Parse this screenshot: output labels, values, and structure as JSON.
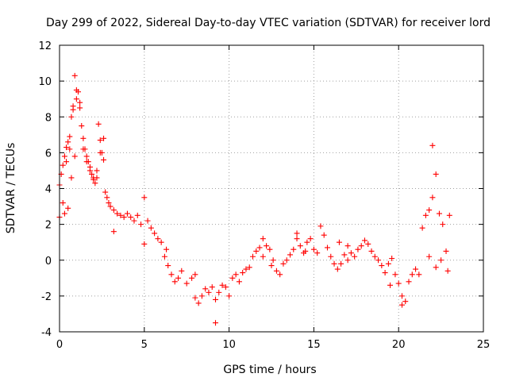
{
  "chart_data": {
    "type": "scatter",
    "title": "Day 299 of 2022, Sidereal Day-to-day VTEC variation (SDTVAR) for receiver lord",
    "xlabel": "GPS time / hours",
    "ylabel": "SDTVAR / TECUs",
    "xlim": [
      0,
      25
    ],
    "ylim": [
      -4,
      12
    ],
    "xticks": [
      0,
      5,
      10,
      15,
      20,
      25
    ],
    "yticks": [
      -4,
      -2,
      0,
      2,
      4,
      6,
      8,
      10,
      12
    ],
    "xtick_labels": [
      "0",
      "5",
      "10",
      "15",
      "20",
      "25"
    ],
    "ytick_labels": [
      "-4",
      "-2",
      "0",
      "2",
      "4",
      "6",
      "8",
      "10",
      "12"
    ],
    "grid": true,
    "marker": "+",
    "color": "#ff0000",
    "series": [
      {
        "name": "SDTVAR",
        "x": [
          0.0,
          0.1,
          0.2,
          0.3,
          0.4,
          0.5,
          0.6,
          0.7,
          0.8,
          0.9,
          1.0,
          1.1,
          1.2,
          1.3,
          1.4,
          1.5,
          1.6,
          1.7,
          1.8,
          1.9,
          2.0,
          2.1,
          2.2,
          2.3,
          2.4,
          2.5,
          2.6,
          2.7,
          2.8,
          2.9,
          3.0,
          3.2,
          3.4,
          3.6,
          3.8,
          4.0,
          4.2,
          4.4,
          4.6,
          4.8,
          5.0,
          5.2,
          5.4,
          5.6,
          5.8,
          6.0,
          6.2,
          6.4,
          6.6,
          6.8,
          7.0,
          7.2,
          7.5,
          7.8,
          8.0,
          8.2,
          8.4,
          8.6,
          8.8,
          9.0,
          9.2,
          9.4,
          9.6,
          9.8,
          10.0,
          10.2,
          10.4,
          10.6,
          10.8,
          11.0,
          11.2,
          11.4,
          11.6,
          11.8,
          12.0,
          12.2,
          12.4,
          12.6,
          12.8,
          13.0,
          13.2,
          13.4,
          13.6,
          13.8,
          14.0,
          14.2,
          14.4,
          14.6,
          14.8,
          15.0,
          15.2,
          15.4,
          15.6,
          15.8,
          16.0,
          16.2,
          16.4,
          16.6,
          16.8,
          17.0,
          17.2,
          17.4,
          17.6,
          17.8,
          18.0,
          18.2,
          18.4,
          18.6,
          18.8,
          19.0,
          19.2,
          19.4,
          19.6,
          19.8,
          20.0,
          20.2,
          20.4,
          20.6,
          20.8,
          21.0,
          21.2,
          21.4,
          21.6,
          21.8,
          22.0,
          22.2,
          22.4,
          22.6,
          22.8,
          23.0,
          0.0,
          0.2,
          0.4,
          0.6,
          0.8,
          1.0,
          1.2,
          1.4,
          1.6,
          1.8,
          2.0,
          2.2,
          2.4,
          2.6,
          0.3,
          0.5,
          0.7,
          0.9,
          3.2,
          5.0,
          6.3,
          8.0,
          9.2,
          12.0,
          12.5,
          14.0,
          14.5,
          16.5,
          17.0,
          19.5,
          20.2,
          21.8,
          22.0,
          22.2,
          22.5,
          22.9
        ],
        "y": [
          4.2,
          4.8,
          5.3,
          5.8,
          6.3,
          6.6,
          6.9,
          8.0,
          8.6,
          10.3,
          9.5,
          9.4,
          8.8,
          7.5,
          6.8,
          6.2,
          5.8,
          5.5,
          5.2,
          4.8,
          4.5,
          4.3,
          4.6,
          7.6,
          6.7,
          6.0,
          5.6,
          3.8,
          3.5,
          3.2,
          3.0,
          2.8,
          2.6,
          2.5,
          2.4,
          2.6,
          2.4,
          2.2,
          2.5,
          2.0,
          3.5,
          2.2,
          1.8,
          1.5,
          1.2,
          1.0,
          0.2,
          -0.3,
          -0.8,
          -1.2,
          -1.0,
          -0.6,
          -1.3,
          -1.0,
          -0.8,
          -2.4,
          -2.0,
          -1.6,
          -1.8,
          -1.5,
          -2.2,
          -1.8,
          -1.4,
          -1.5,
          -2.0,
          -1.0,
          -0.8,
          -1.2,
          -0.7,
          -0.5,
          -0.4,
          0.2,
          0.5,
          0.7,
          1.2,
          0.8,
          0.6,
          0.0,
          -0.6,
          -0.8,
          -0.2,
          0.0,
          0.3,
          0.6,
          1.2,
          0.8,
          0.4,
          1.0,
          1.2,
          0.6,
          0.4,
          1.9,
          1.4,
          0.7,
          0.2,
          -0.2,
          -0.5,
          -0.2,
          0.3,
          0.0,
          0.4,
          0.2,
          0.6,
          0.8,
          1.1,
          0.9,
          0.5,
          0.2,
          0.0,
          -0.3,
          -0.7,
          -0.2,
          0.1,
          -0.8,
          -1.3,
          -2.0,
          -2.3,
          -1.2,
          -0.8,
          -0.5,
          -0.8,
          1.8,
          2.5,
          2.8,
          3.5,
          4.8,
          2.6,
          2.0,
          0.5,
          2.5,
          2.4,
          3.2,
          5.5,
          6.2,
          8.4,
          9.0,
          8.5,
          6.2,
          5.5,
          5.0,
          4.6,
          5.0,
          6.0,
          6.8,
          2.6,
          2.9,
          4.6,
          5.8,
          1.6,
          0.9,
          0.6,
          -2.1,
          -3.5,
          0.2,
          -0.3,
          1.5,
          0.5,
          1.0,
          0.8,
          -1.4,
          -2.5,
          0.2,
          6.4,
          -0.4,
          0.0,
          -0.6
        ]
      }
    ]
  }
}
